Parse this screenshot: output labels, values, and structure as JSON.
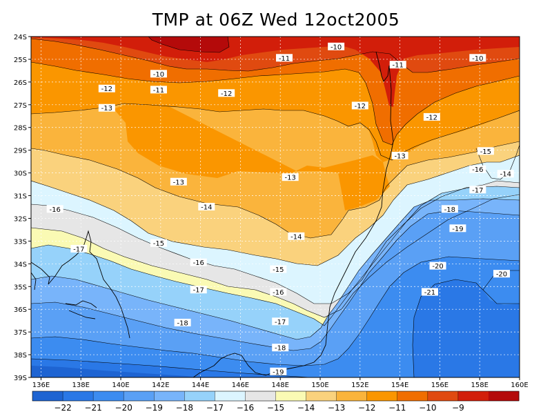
{
  "title": "TMP at 06Z Wed 12oct2005",
  "chart_data": {
    "type": "contour-map",
    "variable": "TMP",
    "lon_range": [
      135.5,
      160
    ],
    "lat_range": [
      -39,
      -24
    ],
    "x_ticks": [
      {
        "lon": 136,
        "label": "136E"
      },
      {
        "lon": 138,
        "label": "138E"
      },
      {
        "lon": 140,
        "label": "140E"
      },
      {
        "lon": 142,
        "label": "142E"
      },
      {
        "lon": 144,
        "label": "144E"
      },
      {
        "lon": 146,
        "label": "146E"
      },
      {
        "lon": 148,
        "label": "148E"
      },
      {
        "lon": 150,
        "label": "150E"
      },
      {
        "lon": 152,
        "label": "152E"
      },
      {
        "lon": 154,
        "label": "154E"
      },
      {
        "lon": 156,
        "label": "156E"
      },
      {
        "lon": 158,
        "label": "158E"
      },
      {
        "lon": 160,
        "label": "160E"
      }
    ],
    "y_ticks": [
      {
        "lat": -24,
        "label": "24S"
      },
      {
        "lat": -25,
        "label": "25S"
      },
      {
        "lat": -26,
        "label": "26S"
      },
      {
        "lat": -27,
        "label": "27S"
      },
      {
        "lat": -28,
        "label": "28S"
      },
      {
        "lat": -29,
        "label": "29S"
      },
      {
        "lat": -30,
        "label": "30S"
      },
      {
        "lat": -31,
        "label": "31S"
      },
      {
        "lat": -32,
        "label": "32S"
      },
      {
        "lat": -33,
        "label": "33S"
      },
      {
        "lat": -34,
        "label": "34S"
      },
      {
        "lat": -35,
        "label": "35S"
      },
      {
        "lat": -36,
        "label": "36S"
      },
      {
        "lat": -37,
        "label": "37S"
      },
      {
        "lat": -38,
        "label": "38S"
      },
      {
        "lat": -39,
        "label": "39S"
      }
    ],
    "grid": true,
    "levels": [
      -22,
      -21,
      -20,
      -19,
      -18,
      -17,
      -16,
      -15,
      -14,
      -13,
      -12,
      -11,
      -10,
      -9
    ],
    "colorbar_labels": [
      "−22",
      "−21",
      "−20",
      "−19",
      "−18",
      "−17",
      "−16",
      "−15",
      "−14",
      "−13",
      "−12",
      "−11",
      "−10",
      "−9"
    ],
    "colorbar_colors": [
      "#1e64d2",
      "#2a78e6",
      "#3c8cf0",
      "#5aa0f5",
      "#78b4fa",
      "#96d2fa",
      "#dcf5ff",
      "#e6e6e6",
      "#fafab4",
      "#fad27d",
      "#fab43c",
      "#fa9600",
      "#f06e00",
      "#e04a10",
      "#d21e0a",
      "#b40a0a"
    ],
    "contour_labels": [
      {
        "lon": 150.8,
        "lat": -24.45,
        "text": "-10"
      },
      {
        "lon": 148.2,
        "lat": -24.95,
        "text": "-11"
      },
      {
        "lon": 153.9,
        "lat": -25.25,
        "text": "-11"
      },
      {
        "lon": 157.9,
        "lat": -24.95,
        "text": "-10"
      },
      {
        "lon": 141.9,
        "lat": -25.65,
        "text": "-10"
      },
      {
        "lon": 141.9,
        "lat": -26.35,
        "text": "-11"
      },
      {
        "lon": 139.3,
        "lat": -26.3,
        "text": "-12"
      },
      {
        "lon": 145.3,
        "lat": -26.5,
        "text": "-12"
      },
      {
        "lon": 139.3,
        "lat": -27.15,
        "text": "-13"
      },
      {
        "lon": 152.0,
        "lat": -27.05,
        "text": "-12"
      },
      {
        "lon": 155.6,
        "lat": -27.55,
        "text": "-12"
      },
      {
        "lon": 154.0,
        "lat": -29.25,
        "text": "-13"
      },
      {
        "lon": 158.3,
        "lat": -29.05,
        "text": "-15"
      },
      {
        "lon": 157.9,
        "lat": -29.85,
        "text": "-16"
      },
      {
        "lon": 159.3,
        "lat": -30.05,
        "text": "-14"
      },
      {
        "lon": 142.9,
        "lat": -30.4,
        "text": "-13"
      },
      {
        "lon": 148.5,
        "lat": -30.2,
        "text": "-13"
      },
      {
        "lon": 157.9,
        "lat": -30.75,
        "text": "-17"
      },
      {
        "lon": 136.7,
        "lat": -31.6,
        "text": "-16"
      },
      {
        "lon": 144.3,
        "lat": -31.5,
        "text": "-14"
      },
      {
        "lon": 156.5,
        "lat": -31.6,
        "text": "-18"
      },
      {
        "lon": 156.9,
        "lat": -32.45,
        "text": "-19"
      },
      {
        "lon": 148.8,
        "lat": -32.8,
        "text": "-14"
      },
      {
        "lon": 141.9,
        "lat": -33.1,
        "text": "-15"
      },
      {
        "lon": 137.9,
        "lat": -33.35,
        "text": "-17"
      },
      {
        "lon": 143.9,
        "lat": -33.95,
        "text": "-16"
      },
      {
        "lon": 155.9,
        "lat": -34.1,
        "text": "-20"
      },
      {
        "lon": 147.9,
        "lat": -34.25,
        "text": "-15"
      },
      {
        "lon": 159.1,
        "lat": -34.45,
        "text": "-20"
      },
      {
        "lon": 143.9,
        "lat": -35.15,
        "text": "-17"
      },
      {
        "lon": 147.9,
        "lat": -35.25,
        "text": "-16"
      },
      {
        "lon": 155.5,
        "lat": -35.25,
        "text": "-21"
      },
      {
        "lon": 143.1,
        "lat": -36.6,
        "text": "-18"
      },
      {
        "lon": 148.0,
        "lat": -36.55,
        "text": "-17"
      },
      {
        "lon": 148.0,
        "lat": -37.7,
        "text": "-18"
      },
      {
        "lon": 147.9,
        "lat": -38.75,
        "text": "-19"
      }
    ]
  }
}
